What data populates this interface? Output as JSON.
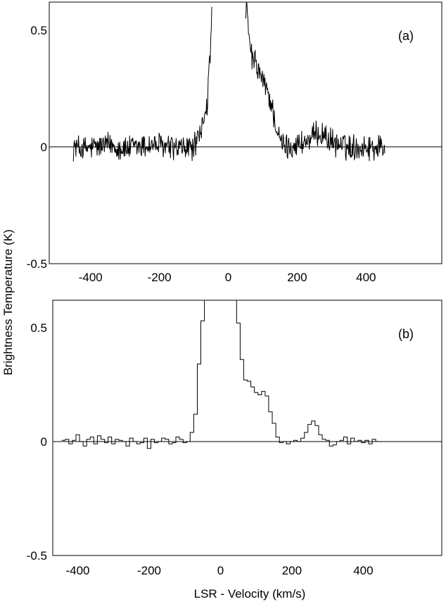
{
  "chart_data": [
    {
      "type": "line",
      "panel_label": "(a)",
      "xlim": [
        -520,
        620
      ],
      "ylim": [
        -0.5,
        0.62
      ],
      "x_ticks": [
        -400,
        -200,
        0,
        200,
        400
      ],
      "x_tick_labels": [
        "-400",
        "-200",
        "0",
        "200",
        "400"
      ],
      "y_ticks": [
        -0.5,
        0,
        0.5
      ],
      "y_tick_labels": [
        "-0.5",
        "0",
        "0.5"
      ],
      "zero_line": true,
      "grid": false,
      "noise_amplitude": 0.05,
      "series": [
        {
          "x": [
            -450,
            -420,
            -380,
            -340,
            -300,
            -260,
            -220,
            -180,
            -140,
            -100,
            -80,
            -70,
            -60,
            -55,
            -50,
            -48,
            50,
            55,
            60,
            70,
            80,
            90,
            100,
            110,
            120,
            130,
            140,
            150,
            170,
            200,
            240,
            260,
            280,
            300,
            340,
            380,
            420,
            455
          ],
          "y": [
            0,
            -0.01,
            0,
            0.01,
            -0.01,
            0,
            0.01,
            0,
            -0.01,
            0,
            0.05,
            0.14,
            0.2,
            0.35,
            0.45,
            0.6,
            0.6,
            0.56,
            0.45,
            0.38,
            0.35,
            0.32,
            0.28,
            0.25,
            0.21,
            0.15,
            0.08,
            0.02,
            0.0,
            0.01,
            0.03,
            0.06,
            0.05,
            0.02,
            0,
            0,
            0,
            0
          ]
        }
      ]
    },
    {
      "type": "line",
      "step": true,
      "panel_label": "(b)",
      "xlim": [
        -470,
        620
      ],
      "ylim": [
        -0.5,
        0.62
      ],
      "x_ticks": [
        -400,
        -200,
        0,
        200,
        400
      ],
      "x_tick_labels": [
        "-400",
        "-200",
        "0",
        "200",
        "400"
      ],
      "y_ticks": [
        -0.5,
        0,
        0.5
      ],
      "y_tick_labels": [
        "-0.5",
        "0",
        "0.5"
      ],
      "zero_line": true,
      "grid": false,
      "series": [
        {
          "x": [
            -440,
            -430,
            -420,
            -410,
            -400,
            -390,
            -380,
            -370,
            -360,
            -350,
            -340,
            -330,
            -320,
            -310,
            -300,
            -290,
            -280,
            -270,
            -260,
            -250,
            -240,
            -230,
            -220,
            -210,
            -200,
            -190,
            -180,
            -170,
            -160,
            -150,
            -140,
            -130,
            -120,
            -110,
            -100,
            -90,
            -80,
            -70,
            -60,
            -50,
            -40,
            -30,
            -20,
            -10,
            0,
            10,
            20,
            30,
            40,
            50,
            60,
            70,
            80,
            90,
            100,
            110,
            120,
            130,
            140,
            150,
            160,
            170,
            180,
            190,
            200,
            210,
            220,
            230,
            240,
            250,
            260,
            270,
            280,
            290,
            300,
            310,
            320,
            330,
            340,
            350,
            360,
            370,
            380,
            390,
            400,
            410,
            420,
            430,
            440
          ],
          "y": [
            0.005,
            0.01,
            -0.01,
            0.005,
            0.03,
            0.0,
            -0.02,
            0.01,
            0.02,
            -0.01,
            0.025,
            0.01,
            -0.005,
            0.02,
            -0.01,
            0.01,
            0.005,
            0.0,
            -0.02,
            0.015,
            0.0,
            -0.01,
            -0.005,
            0.015,
            -0.03,
            0.01,
            -0.005,
            0.0,
            0.015,
            0.01,
            -0.01,
            -0.005,
            0.02,
            0.01,
            -0.005,
            0.0,
            0.04,
            0.12,
            0.34,
            0.53,
            0.62,
            0.62,
            0.62,
            0.62,
            0.62,
            0.62,
            0.62,
            0.62,
            0.62,
            0.52,
            0.36,
            0.27,
            0.265,
            0.24,
            0.215,
            0.205,
            0.22,
            0.2,
            0.13,
            0.08,
            0.02,
            -0.005,
            0.0,
            -0.01,
            0.0,
            0.005,
            0.0,
            0.015,
            0.04,
            0.075,
            0.09,
            0.07,
            0.03,
            0.01,
            0.005,
            -0.02,
            -0.015,
            0.0,
            0.005,
            0.02,
            -0.01,
            0.015,
            0.0,
            0.005,
            -0.005,
            0.005,
            -0.01,
            0.01,
            0.0
          ]
        }
      ]
    }
  ],
  "labels": {
    "y_axis_title": "Brightness Temperature (K)",
    "x_axis_title": "LSR - Velocity (km/s)"
  }
}
